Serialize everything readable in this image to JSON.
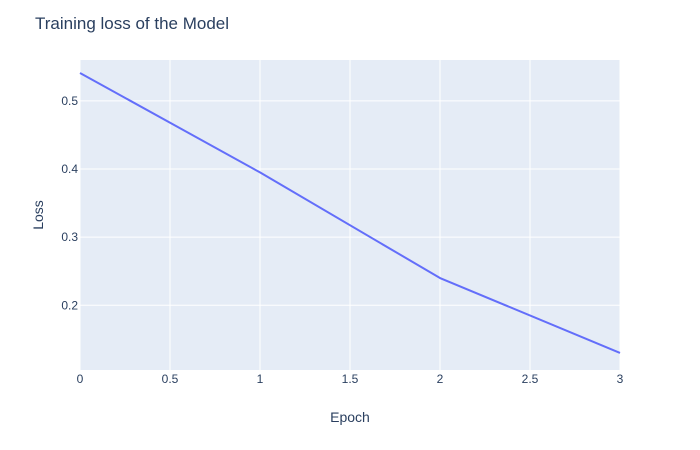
{
  "chart_data": {
    "type": "line",
    "title": "Training loss of the Model",
    "xlabel": "Epoch",
    "ylabel": "Loss",
    "x": [
      0,
      1,
      2,
      3
    ],
    "series": [
      {
        "values": [
          0.541,
          0.395,
          0.24,
          0.13
        ]
      }
    ],
    "xlim": [
      0,
      3
    ],
    "ylim": [
      0.105,
      0.56
    ],
    "xticks": [
      0,
      0.5,
      1,
      1.5,
      2,
      2.5,
      3
    ],
    "xtick_labels": [
      "0",
      "0.5",
      "1",
      "1.5",
      "2",
      "2.5",
      "3"
    ],
    "yticks": [
      0.2,
      0.3,
      0.4,
      0.5
    ],
    "ytick_labels": [
      "0.2",
      "0.3",
      "0.4",
      "0.5"
    ],
    "grid": true,
    "colors": {
      "line": "#636efa",
      "plot_background": "#e5ecf6",
      "grid": "#ffffff",
      "text": "#2a3f5f"
    }
  }
}
